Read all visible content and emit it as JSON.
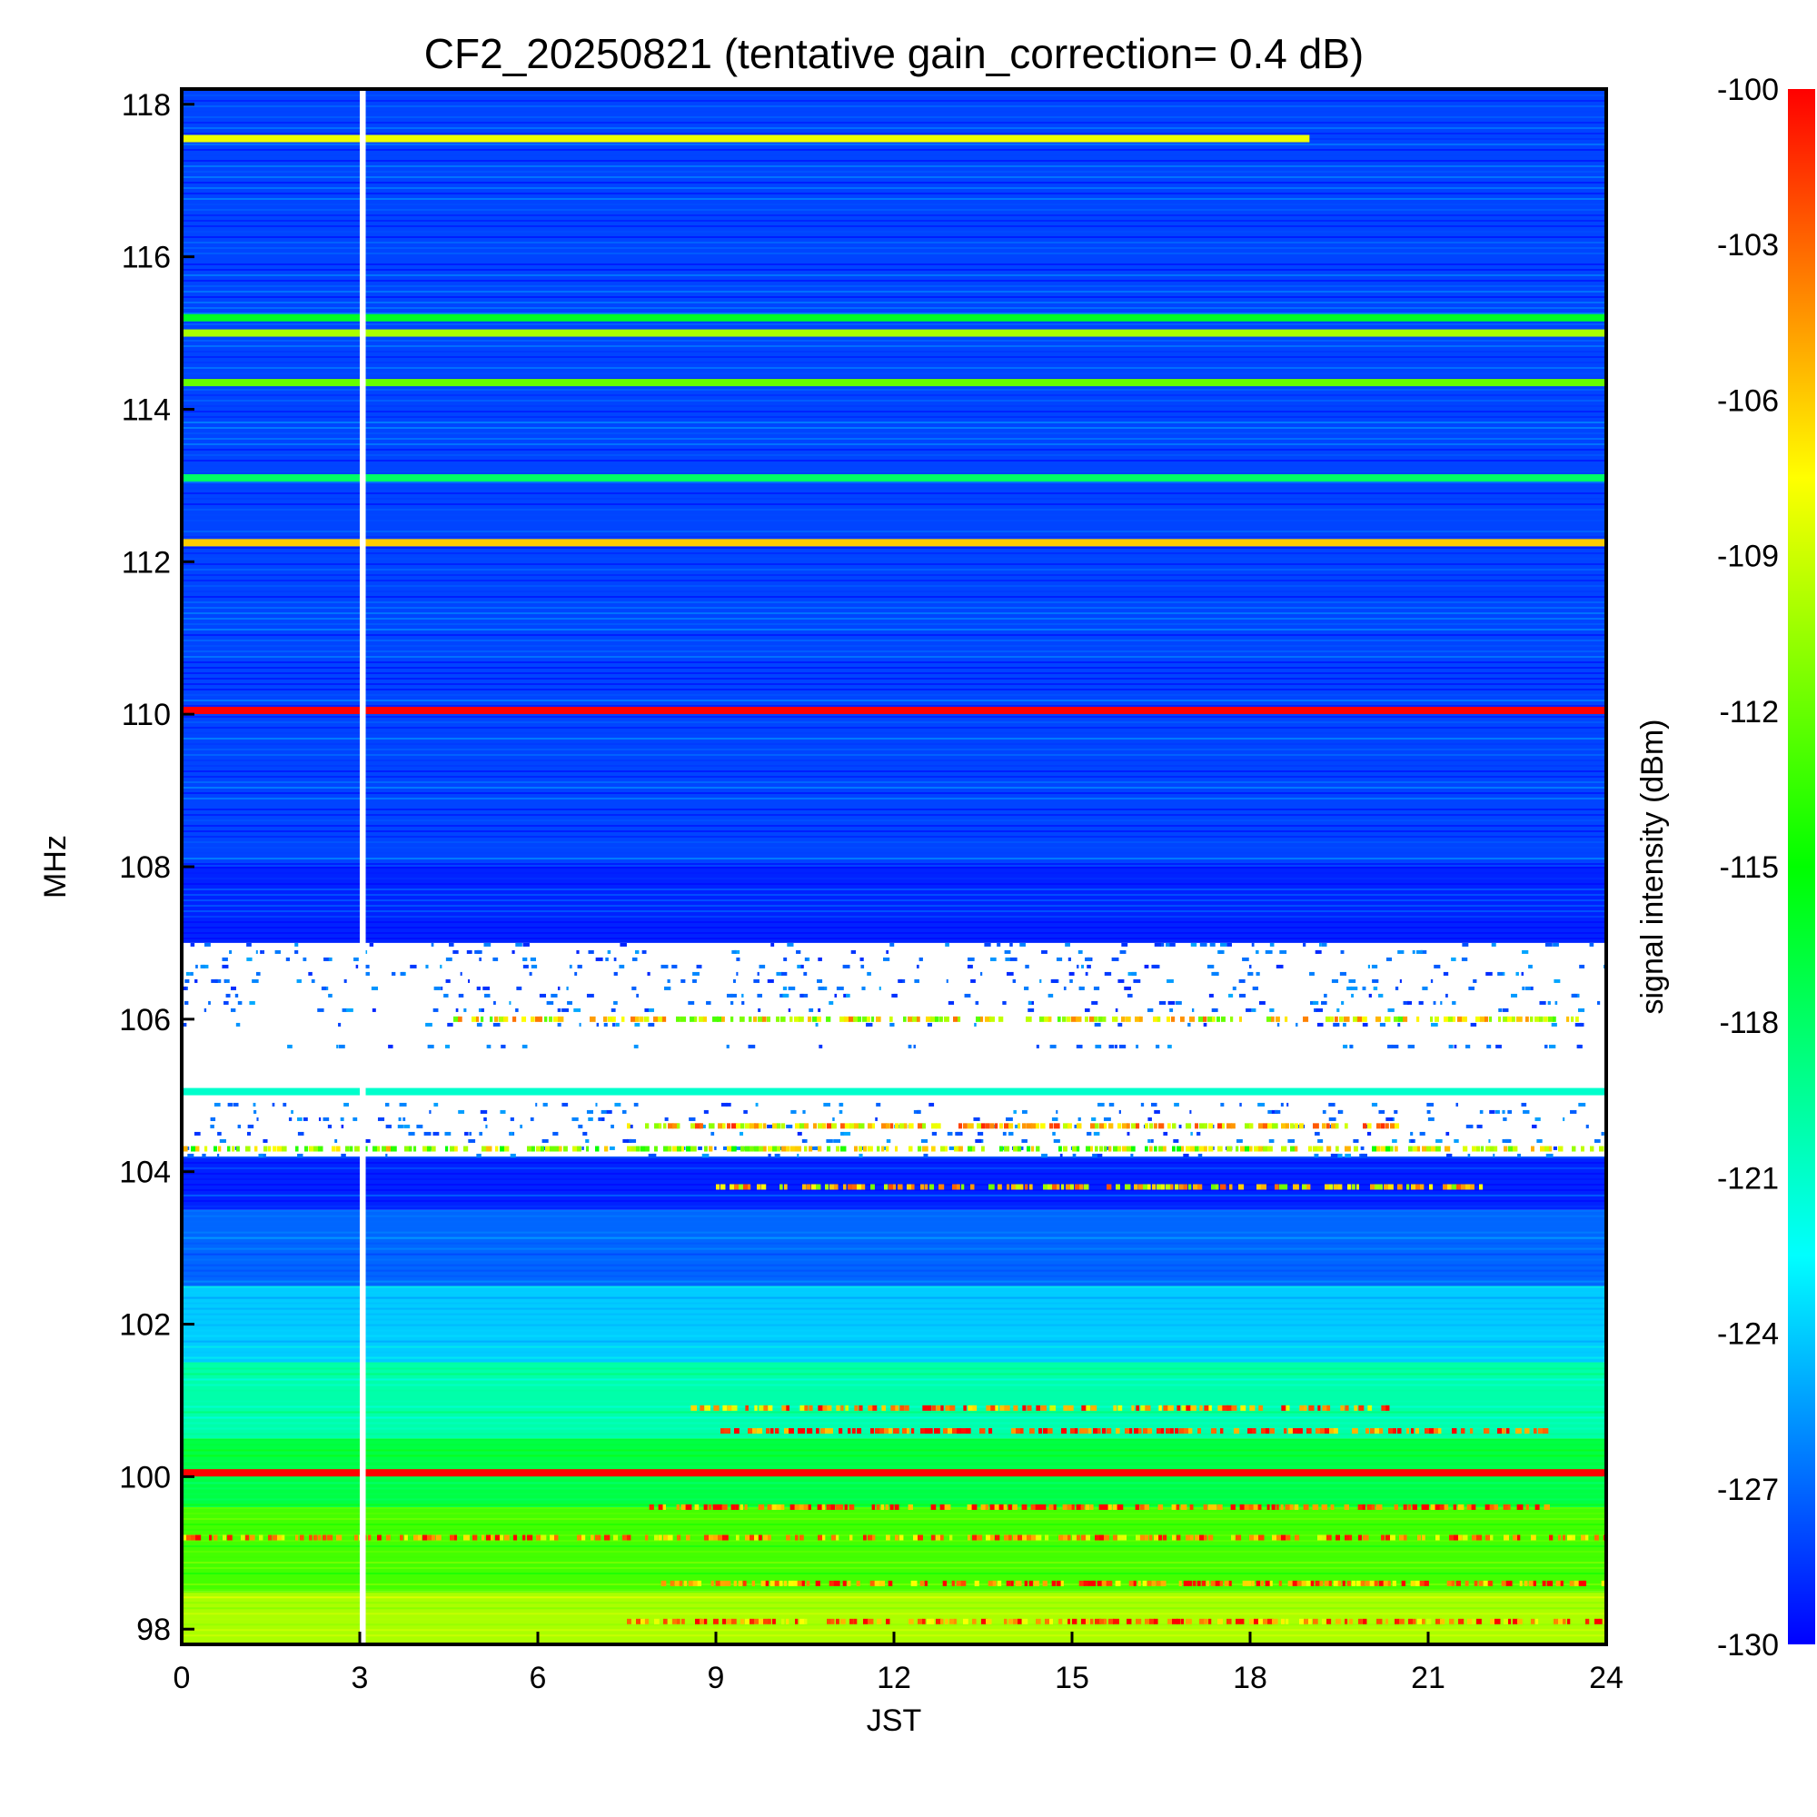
{
  "chart_data": {
    "type": "heatmap",
    "title": "CF2_20250821 (tentative gain_correction=  0.4 dB)",
    "xlabel": "JST",
    "ylabel": "MHz",
    "colorbar_label": "signal intensity (dBm)",
    "xlim": [
      0,
      24
    ],
    "ylim": [
      97.8,
      118.2
    ],
    "x_ticks": [
      0,
      3,
      6,
      9,
      12,
      15,
      18,
      21,
      24
    ],
    "x_tick_labels": [
      "0",
      "3",
      "6",
      "9",
      "12",
      "15",
      "18",
      "21",
      "24"
    ],
    "y_ticks": [
      98,
      100,
      102,
      104,
      106,
      108,
      110,
      112,
      114,
      116,
      118
    ],
    "y_tick_labels": [
      "98",
      "100",
      "102",
      "104",
      "106",
      "108",
      "110",
      "112",
      "114",
      "116",
      "118"
    ],
    "colorbar_range": [
      -130,
      -100
    ],
    "colorbar_ticks": [
      -100,
      -103,
      -106,
      -109,
      -112,
      -115,
      -118,
      -121,
      -124,
      -127,
      -130
    ],
    "colorbar_tick_labels": [
      "-100",
      "-103",
      "-106",
      "-109",
      "-112",
      "-115",
      "-118",
      "-121",
      "-124",
      "-127",
      "-130"
    ],
    "colormap": [
      "#0000ff",
      "#0080ff",
      "#00ffff",
      "#00ff80",
      "#00ff00",
      "#80ff00",
      "#ffff00",
      "#ff8000",
      "#ff0000"
    ],
    "data_gap": {
      "x_start": 3.0,
      "x_end": 3.1
    },
    "white_saturated_band_mhz": [
      104.2,
      107.0
    ],
    "background_levels_dbm": [
      {
        "mhz_from": 97.8,
        "mhz_to": 98.5,
        "dbm": -110
      },
      {
        "mhz_from": 98.5,
        "mhz_to": 99.6,
        "dbm": -113
      },
      {
        "mhz_from": 99.6,
        "mhz_to": 100.5,
        "dbm": -117
      },
      {
        "mhz_from": 100.5,
        "mhz_to": 101.5,
        "dbm": -120
      },
      {
        "mhz_from": 101.5,
        "mhz_to": 102.5,
        "dbm": -124
      },
      {
        "mhz_from": 102.5,
        "mhz_to": 103.5,
        "dbm": -127
      },
      {
        "mhz_from": 103.5,
        "mhz_to": 104.2,
        "dbm": -129
      },
      {
        "mhz_from": 107.0,
        "mhz_to": 108.0,
        "dbm": -129
      },
      {
        "mhz_from": 108.0,
        "mhz_to": 118.2,
        "dbm": -128
      }
    ],
    "persistent_carriers": [
      {
        "mhz": 117.55,
        "dbm": -108,
        "x_start": 0,
        "x_end": 19
      },
      {
        "mhz": 115.2,
        "dbm": -116,
        "x_start": 0,
        "x_end": 24
      },
      {
        "mhz": 115.0,
        "dbm": -110,
        "x_start": 0,
        "x_end": 24
      },
      {
        "mhz": 114.35,
        "dbm": -112,
        "x_start": 0,
        "x_end": 24
      },
      {
        "mhz": 113.1,
        "dbm": -118,
        "x_start": 0,
        "x_end": 24
      },
      {
        "mhz": 112.25,
        "dbm": -106,
        "x_start": 0,
        "x_end": 24
      },
      {
        "mhz": 110.05,
        "dbm": -100,
        "x_start": 0,
        "x_end": 24
      },
      {
        "mhz": 105.05,
        "dbm": -121,
        "x_start": 0,
        "x_end": 24
      },
      {
        "mhz": 100.05,
        "dbm": -100,
        "x_start": 0,
        "x_end": 24
      }
    ],
    "intermittent_signals": [
      {
        "mhz": 106.0,
        "dbm": -108,
        "x_start": 4.5,
        "x_end": 23.5
      },
      {
        "mhz": 104.6,
        "dbm": -106,
        "x_start": 7.5,
        "x_end": 20.5
      },
      {
        "mhz": 104.3,
        "dbm": -110,
        "x_start": 0,
        "x_end": 24
      },
      {
        "mhz": 103.8,
        "dbm": -107,
        "x_start": 9,
        "x_end": 22
      },
      {
        "mhz": 100.9,
        "dbm": -104,
        "x_start": 8.5,
        "x_end": 20.5
      },
      {
        "mhz": 100.6,
        "dbm": -102,
        "x_start": 9,
        "x_end": 23
      },
      {
        "mhz": 99.6,
        "dbm": -102,
        "x_start": 7.8,
        "x_end": 23
      },
      {
        "mhz": 99.2,
        "dbm": -104,
        "x_start": 0,
        "x_end": 24
      },
      {
        "mhz": 98.6,
        "dbm": -103,
        "x_start": 8,
        "x_end": 24
      },
      {
        "mhz": 98.1,
        "dbm": -104,
        "x_start": 7.5,
        "x_end": 24
      }
    ]
  }
}
